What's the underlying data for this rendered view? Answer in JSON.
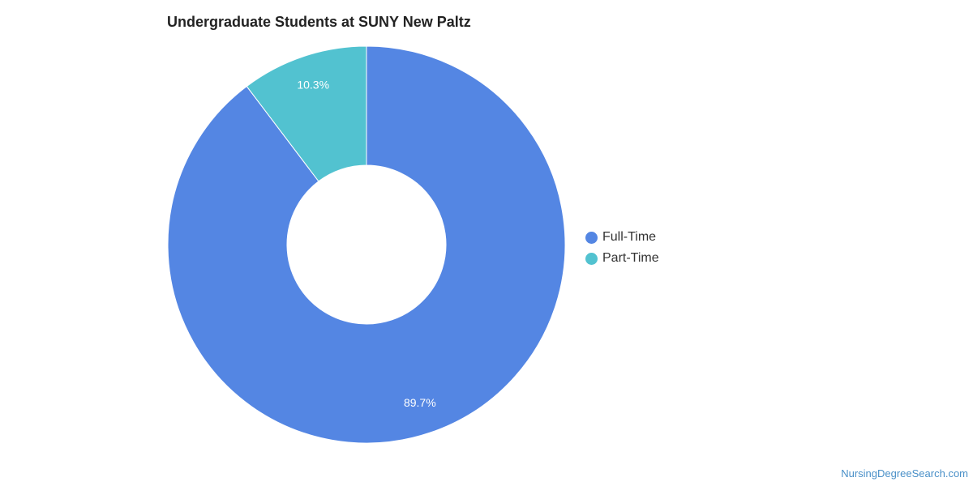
{
  "chart_data": {
    "type": "pie",
    "variant": "donut",
    "title": "Undergraduate Students at SUNY New Paltz",
    "categories": [
      "Full-Time",
      "Part-Time"
    ],
    "values": [
      89.7,
      10.3
    ],
    "labels": [
      "89.7%",
      "10.3%"
    ],
    "colors": [
      "#5486e3",
      "#52c2d0"
    ],
    "legend_position": "right"
  },
  "watermark": "NursingDegreeSearch.com"
}
